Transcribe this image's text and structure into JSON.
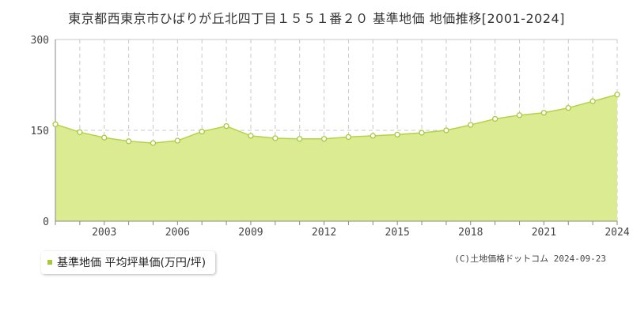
{
  "title": "東京都西東京市ひばりが丘北四丁目１５５１番２０ 基準地価 地価推移[2001-2024]",
  "legend_label": "基準地価 平均坪単価(万円/坪)",
  "credit": "(C)土地価格ドットコム 2024-09-23",
  "colors": {
    "area_fill": "#dbeb92",
    "line": "#b4d24a",
    "marker": "#a6c93a",
    "grid": "#c8c8c8",
    "axis": "#888888"
  },
  "chart_data": {
    "type": "area",
    "title": "東京都西東京市ひばりが丘北四丁目１５５１番２０ 基準地価 地価推移[2001-2024]",
    "x": [
      2001,
      2002,
      2003,
      2004,
      2005,
      2006,
      2007,
      2008,
      2009,
      2010,
      2011,
      2012,
      2013,
      2014,
      2015,
      2016,
      2017,
      2018,
      2019,
      2020,
      2021,
      2022,
      2023,
      2024
    ],
    "series": [
      {
        "name": "基準地価 平均坪単価(万円/坪)",
        "values": [
          160,
          147,
          138,
          132,
          129,
          133,
          148,
          157,
          141,
          137,
          136,
          136,
          139,
          141,
          143,
          146,
          150,
          159,
          169,
          175,
          179,
          187,
          198,
          209
        ]
      }
    ],
    "xlim": [
      2001,
      2024
    ],
    "ylim": [
      0,
      300
    ],
    "yticks": [
      0,
      150,
      300
    ],
    "xticks": [
      2003,
      2006,
      2009,
      2012,
      2015,
      2018,
      2021,
      2024
    ],
    "grid": true
  }
}
